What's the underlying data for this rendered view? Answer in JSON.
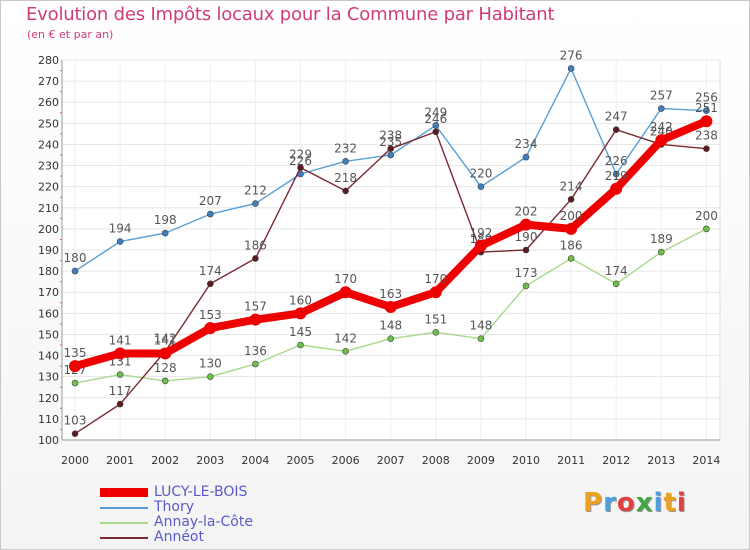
{
  "chart_data": {
    "type": "line",
    "title": "Evolution des Impôts locaux pour la Commune par Habitant",
    "subtitle": "(en € et par an)",
    "x": [
      "2000",
      "2001",
      "2002",
      "2003",
      "2004",
      "2005",
      "2006",
      "2007",
      "2008",
      "2009",
      "2010",
      "2011",
      "2012",
      "2013",
      "2014"
    ],
    "ylim": [
      100,
      280
    ],
    "ytick_step": 10,
    "series": [
      {
        "name": "Thory",
        "color": "#5a9fd4",
        "point_color": "#3e7fc0",
        "values": [
          180,
          194,
          198,
          207,
          212,
          226,
          232,
          235,
          249,
          220,
          234,
          276,
          226,
          257,
          256
        ],
        "labels": [
          "180",
          "194",
          "198",
          "207",
          "212",
          "226",
          "232",
          "235",
          "249",
          "220",
          "234",
          "276",
          "226",
          "257",
          "256"
        ]
      },
      {
        "name": "Annay-la-Côte",
        "color": "#a7d98a",
        "point_color": "#6cc04a",
        "values": [
          127,
          131,
          128,
          130,
          136,
          145,
          142,
          148,
          151,
          148,
          173,
          186,
          174,
          189,
          200
        ],
        "labels": [
          "127",
          "131",
          "128",
          "130",
          "136",
          "145",
          "142",
          "148",
          "151",
          "148",
          "173",
          "186",
          "174",
          "189",
          "200"
        ]
      },
      {
        "name": "Annéot",
        "color": "#7a2a30",
        "point_color": "#5a1a20",
        "values": [
          103,
          117,
          142,
          174,
          186,
          229,
          218,
          238,
          246,
          189,
          190,
          214,
          247,
          240,
          238
        ],
        "labels": [
          "103",
          "117",
          "142",
          "174",
          "186",
          "229",
          "218",
          "238",
          "246",
          "189",
          "190",
          "214",
          "247",
          "240",
          "238"
        ]
      },
      {
        "name": "LUCY-LE-BOIS",
        "color": "#ee0000",
        "point_color": "#ee0000",
        "values": [
          135,
          141,
          141,
          153,
          157,
          160,
          170,
          163,
          170,
          192,
          202,
          200,
          219,
          242,
          251
        ],
        "labels": [
          "135",
          "141",
          "141",
          "153",
          "157",
          "160",
          "170",
          "163",
          "170",
          "192",
          "202",
          "200",
          "219",
          "242",
          "251"
        ]
      }
    ],
    "legend": [
      "LUCY-LE-BOIS",
      "Thory",
      "Annay-la-Côte",
      "Annéot"
    ],
    "legend_colors": [
      "#ee0000",
      "#5a9fd4",
      "#a7d98a",
      "#7a2a30"
    ]
  },
  "logo": {
    "letters": [
      "P",
      "r",
      "o",
      "x",
      "i",
      "t",
      "i"
    ],
    "colors": [
      "#f0a020",
      "#4aa0e0",
      "#e04040",
      "#40a840",
      "#4aa0e0",
      "#f0a020",
      "#e04040"
    ]
  }
}
